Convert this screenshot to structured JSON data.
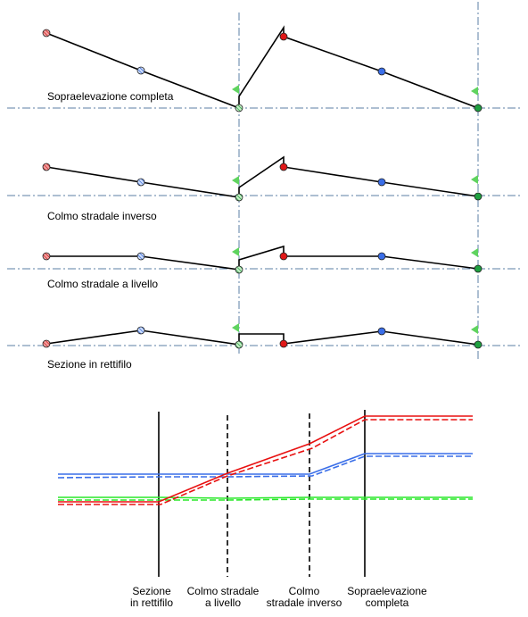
{
  "sections": [
    {
      "label": "Sopraelevazione completa"
    },
    {
      "label": "Colmo stradale inverso"
    },
    {
      "label": "Colmo stradale a livello"
    },
    {
      "label": "Sezione in rettifilo"
    }
  ],
  "profile_stages": [
    {
      "line1": "Sezione",
      "line2": "in rettifilo"
    },
    {
      "line1": "Colmo stradale",
      "line2": "a livello"
    },
    {
      "line1": "Colmo",
      "line2": "stradale inverso"
    },
    {
      "line1": "Sopraelevazione",
      "line2": "completa"
    }
  ],
  "colors": {
    "outer_edge": "#e81010",
    "centerline": "#3a6ee8",
    "inner_edge": "#28e828",
    "axis": "#5b7fa6",
    "flag": "#5fd35f",
    "red_node": "#e01818",
    "blue_node": "#3a6ee8",
    "green_node": "#1fa040"
  }
}
